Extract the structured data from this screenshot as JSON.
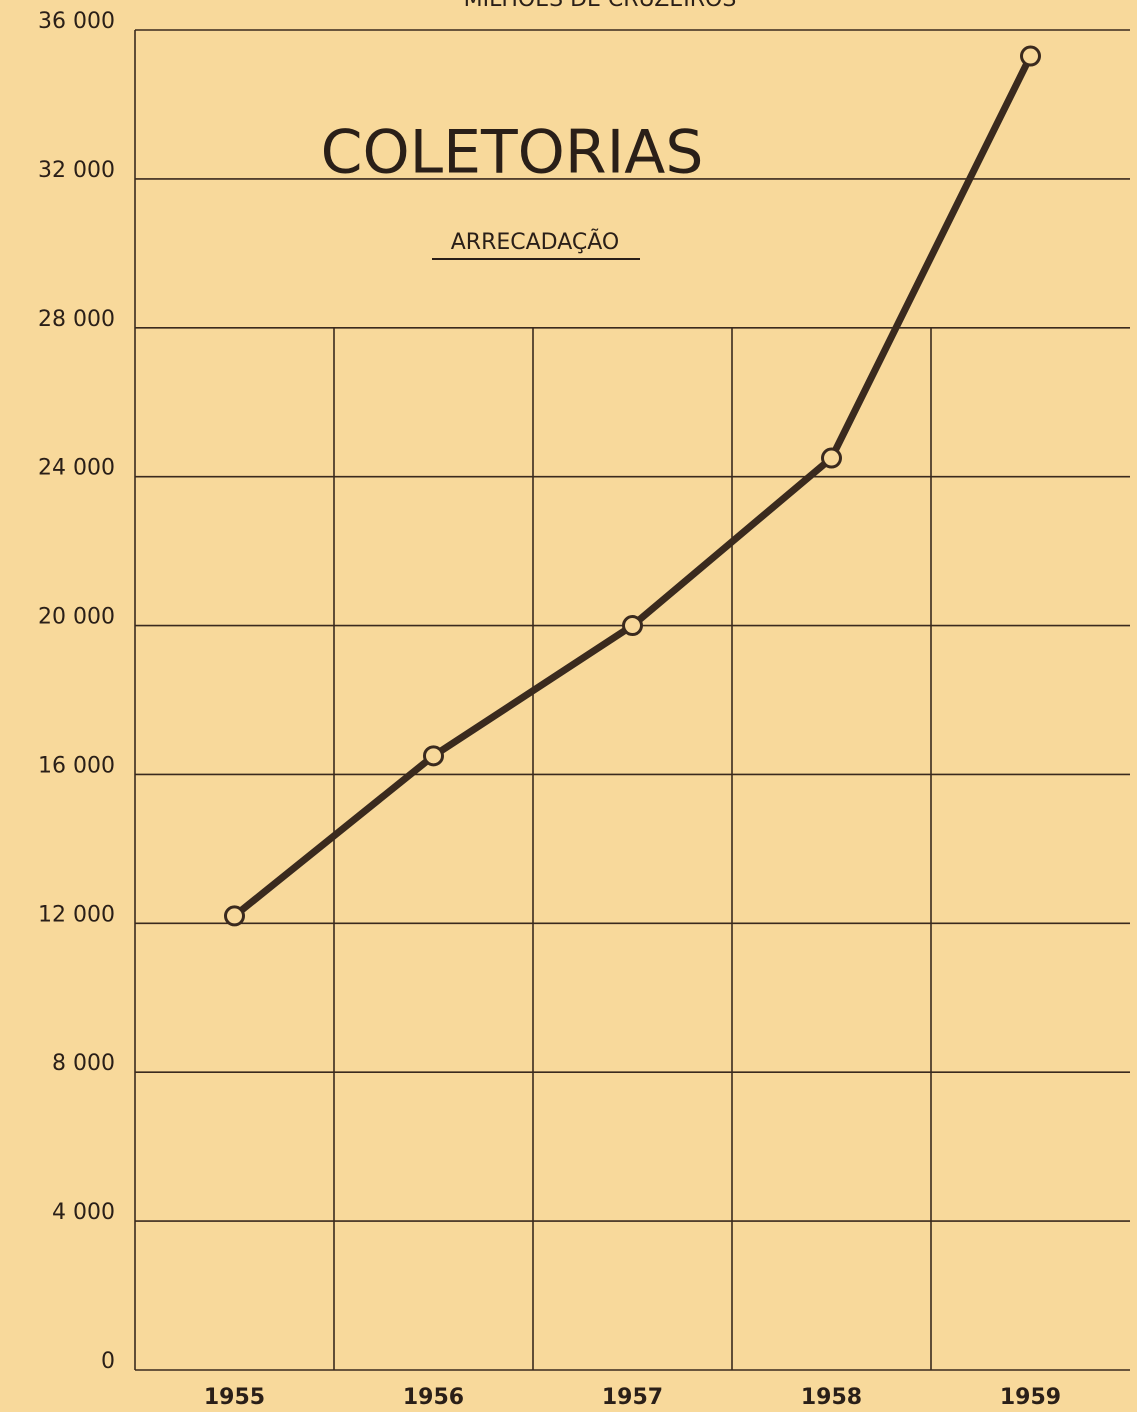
{
  "chart_data": {
    "type": "line",
    "y_axis_label": "MILHÕES DE CRUZEIROS",
    "title": "COLETORIAS",
    "subtitle": "ARRECADAÇÃO",
    "categories": [
      "1955",
      "1956",
      "1957",
      "1958",
      "1959"
    ],
    "series": [
      {
        "name": "ARRECADAÇÃO",
        "color": "#3a2a1e",
        "values": [
          12200,
          16500,
          20000,
          24500,
          35300
        ]
      }
    ],
    "ylim": [
      0,
      36000
    ],
    "yticks": [
      0,
      {
        "value": 4000,
        "label": "4 000"
      },
      {
        "value": 8000,
        "label": "8 000"
      },
      {
        "value": 12000,
        "label": "12 000"
      },
      {
        "value": 16000,
        "label": "16 000"
      },
      {
        "value": 20000,
        "label": "20 000"
      },
      {
        "value": 24000,
        "label": "24 000"
      },
      {
        "value": 28000,
        "label": "28 000"
      },
      {
        "value": 32000,
        "label": "32 000"
      },
      {
        "value": 36000,
        "label": "36 000"
      }
    ],
    "grid": true
  }
}
